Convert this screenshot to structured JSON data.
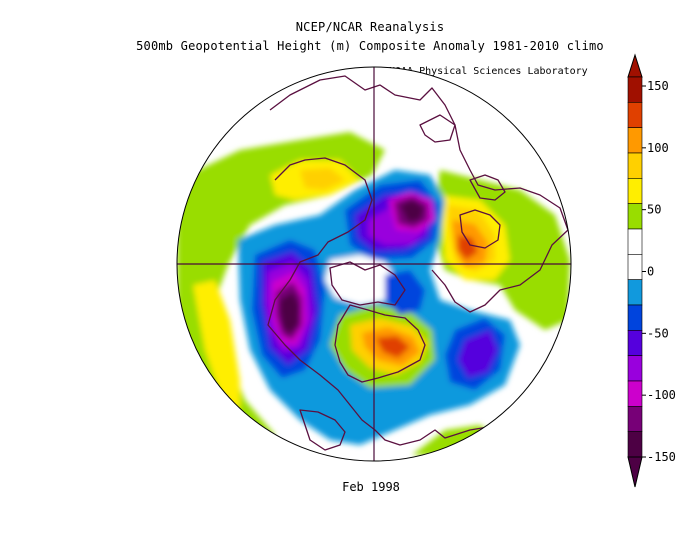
{
  "title": {
    "line1": "NCEP/NCAR Reanalysis",
    "line2": "500mb Geopotential Height (m) Composite Anomaly 1981-2010 climo"
  },
  "credit": "NOAA Physical Sciences Laboratory",
  "period_label": "Feb 1998",
  "colorbar": {
    "labels": [
      "150",
      "100",
      "50",
      "0",
      "-50",
      "-100",
      "-150"
    ],
    "colors": [
      "#a01000",
      "#e04000",
      "#ff9900",
      "#ffd000",
      "#ffee00",
      "#99dd00",
      "#ffffff",
      "#ffffff",
      "#1199dd",
      "#0044dd",
      "#5500dd",
      "#9900dd",
      "#cc00cc",
      "#770077",
      "#4d0044"
    ]
  }
}
